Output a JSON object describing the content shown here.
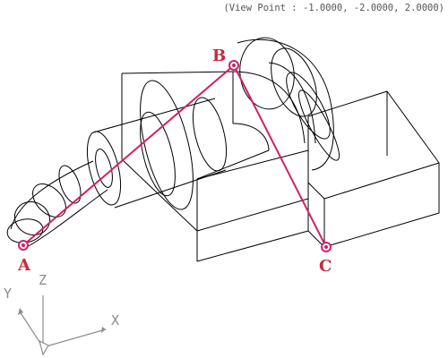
{
  "viewport": {
    "view_point_text": "(View Point : -1.0000, -2.0000, 2.0000)"
  },
  "points": {
    "a": "A",
    "b": "B",
    "c": "C"
  },
  "ucs": {
    "x": "X",
    "y": "Y",
    "z": "Z"
  },
  "colors": {
    "model_lines": "#000000",
    "polyline": "#d0206a",
    "point_label": "#c8283c",
    "ucs_icon": "#8c8c8c"
  }
}
